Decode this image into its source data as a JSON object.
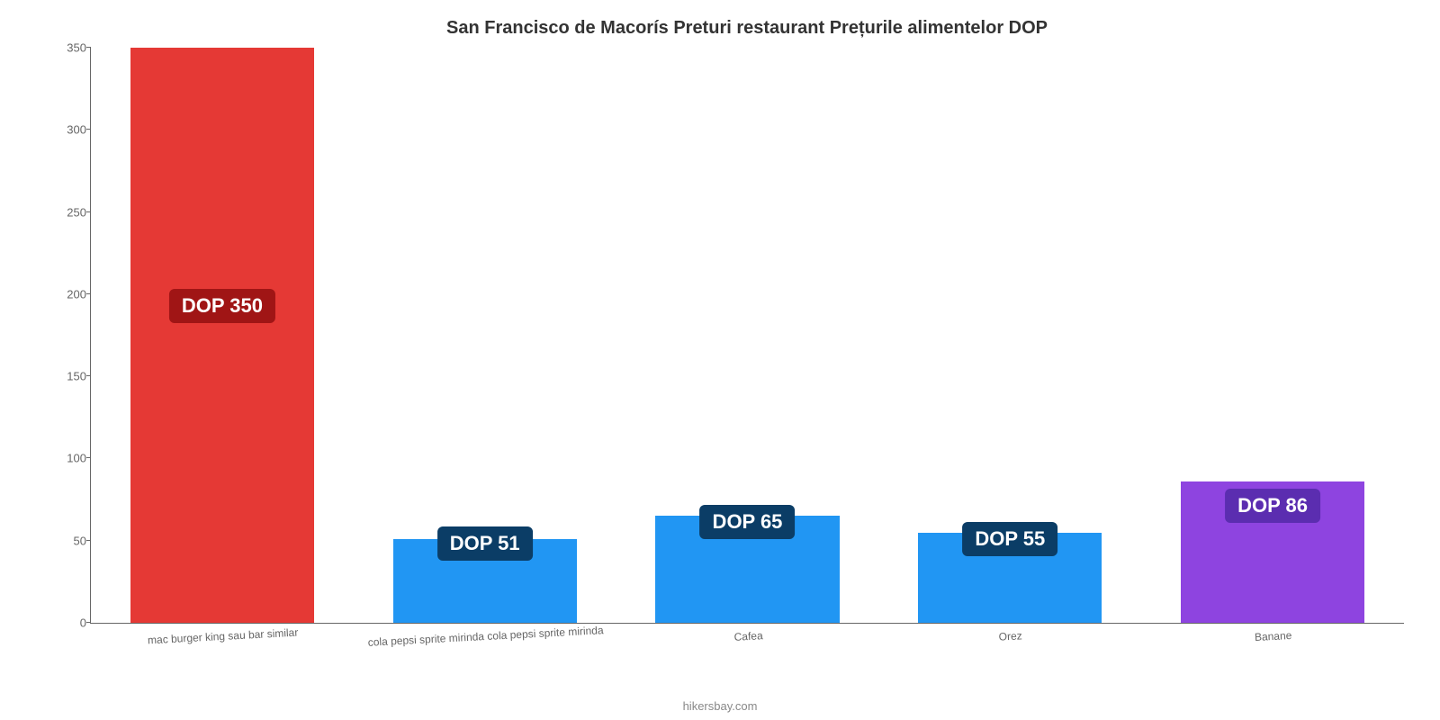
{
  "chart": {
    "type": "bar",
    "title": "San Francisco de Macorís Preturi restaurant Prețurile alimentelor DOP",
    "title_fontsize": 20,
    "title_color": "#333333",
    "background_color": "#ffffff",
    "y_axis": {
      "min": 0,
      "max": 350,
      "tick_step": 50,
      "ticks": [
        "0",
        "50",
        "100",
        "150",
        "200",
        "250",
        "300",
        "350"
      ],
      "tick_fontsize": 13,
      "tick_color": "#666666"
    },
    "bar_width_pct": 70,
    "bars": [
      {
        "category": "mac burger king sau bar similar",
        "value": 350,
        "label": "DOP 350",
        "bar_color": "#e53935",
        "label_bg": "#a01515",
        "label_fontsize": 22,
        "label_position_from_top_pct": 42
      },
      {
        "category": "cola pepsi sprite mirinda cola pepsi sprite mirinda",
        "value": 51,
        "label": "DOP 51",
        "bar_color": "#2196f3",
        "label_bg": "#0b3d66",
        "label_fontsize": 22,
        "label_position_from_top_pct": -15
      },
      {
        "category": "Cafea",
        "value": 65,
        "label": "DOP 65",
        "bar_color": "#2196f3",
        "label_bg": "#0b3d66",
        "label_fontsize": 22,
        "label_position_from_top_pct": -10
      },
      {
        "category": "Orez",
        "value": 55,
        "label": "DOP 55",
        "bar_color": "#2196f3",
        "label_bg": "#0b3d66",
        "label_fontsize": 22,
        "label_position_from_top_pct": -12
      },
      {
        "category": "Banane",
        "value": 86,
        "label": "DOP 86",
        "bar_color": "#8e44e0",
        "label_bg": "#5b2db0",
        "label_fontsize": 22,
        "label_position_from_top_pct": 5
      }
    ],
    "x_label_fontsize": 12,
    "x_label_color": "#666666",
    "x_label_rotate_deg": -3,
    "source_text": "hikersbay.com",
    "source_fontsize": 13,
    "source_color": "#888888"
  }
}
